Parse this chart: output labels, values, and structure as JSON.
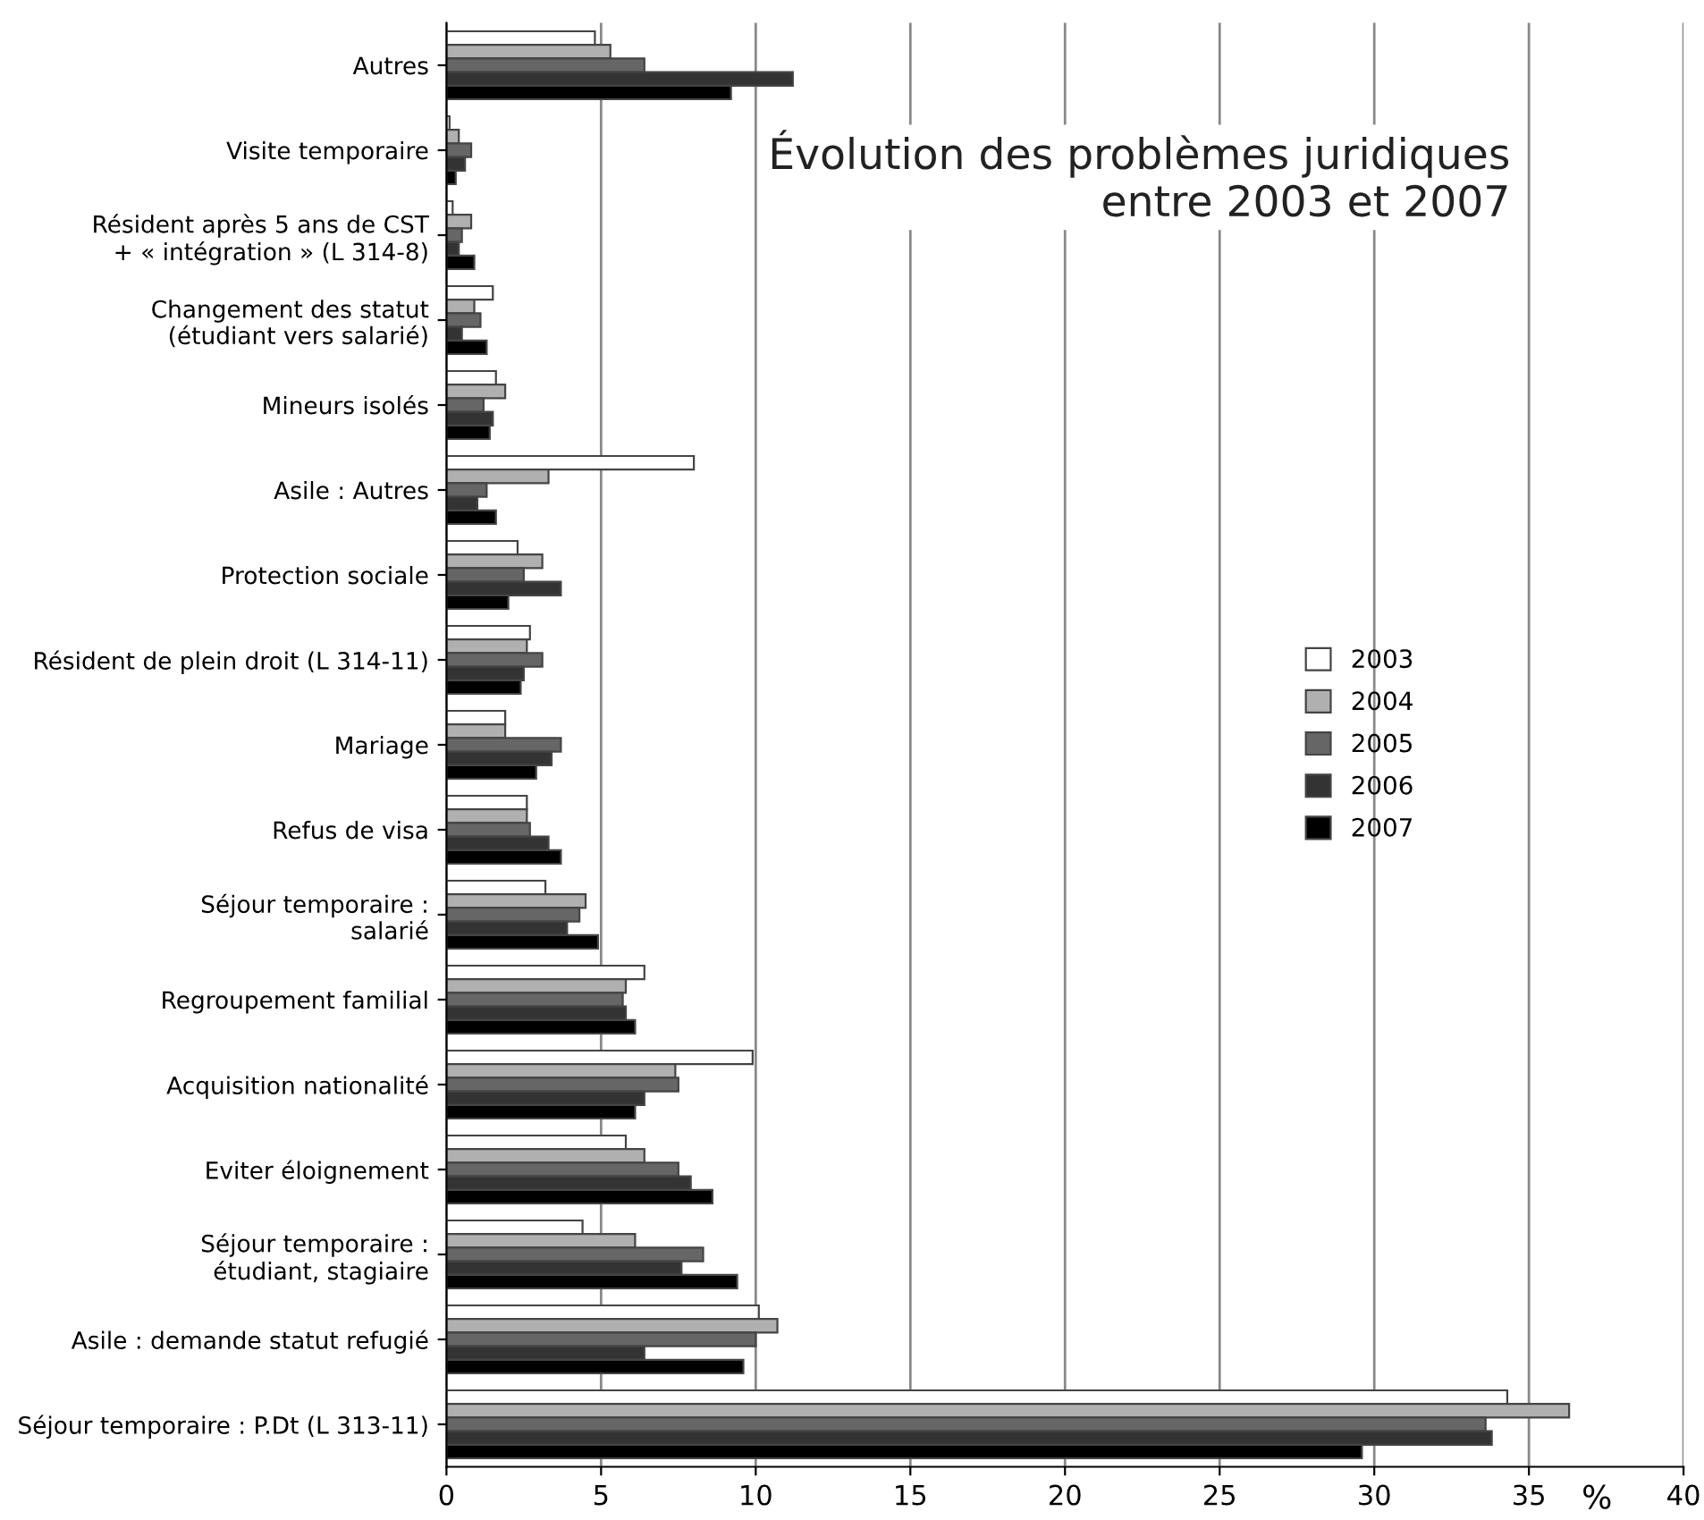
{
  "chart_data": {
    "type": "bar",
    "orientation": "horizontal",
    "title": "Évolution des problèmes juridiques\nentre 2003 et 2007",
    "xlabel": "%",
    "categories": [
      "Autres",
      "Visite temporaire",
      "Résident après 5 ans de CST\n+ « intégration » (L 314-8)",
      "Changement des statut\n(étudiant vers salarié)",
      "Mineurs isolés",
      "Asile : Autres",
      "Protection sociale",
      "Résident de plein droit (L 314-11)",
      "Mariage",
      "Refus de visa",
      "Séjour temporaire :\nsalarié",
      "Regroupement familial",
      "Acquisition nationalité",
      "Eviter éloignement",
      "Séjour temporaire :\nétudiant, stagiaire",
      "Asile : demande statut refugié",
      "Séjour temporaire : P.Dt (L 313-11)"
    ],
    "series": [
      {
        "name": "2003",
        "color": "#ffffff",
        "values": [
          4.8,
          0.1,
          0.2,
          1.5,
          1.6,
          8.0,
          2.3,
          2.7,
          1.9,
          2.6,
          3.2,
          6.4,
          9.9,
          5.8,
          4.4,
          10.1,
          34.3
        ]
      },
      {
        "name": "2004",
        "color": "#b0b0b0",
        "values": [
          5.3,
          0.4,
          0.8,
          0.9,
          1.9,
          3.3,
          3.1,
          2.6,
          1.9,
          2.6,
          4.5,
          5.8,
          7.4,
          6.4,
          6.1,
          10.7,
          36.3
        ]
      },
      {
        "name": "2005",
        "color": "#666666",
        "values": [
          6.4,
          0.8,
          0.5,
          1.1,
          1.2,
          1.3,
          2.5,
          3.1,
          3.7,
          2.7,
          4.3,
          5.7,
          7.5,
          7.5,
          8.3,
          10.0,
          33.6
        ]
      },
      {
        "name": "2006",
        "color": "#333333",
        "values": [
          11.2,
          0.6,
          0.4,
          0.5,
          1.5,
          1.0,
          3.7,
          2.5,
          3.4,
          3.3,
          3.9,
          5.8,
          6.4,
          7.9,
          7.6,
          6.4,
          33.8
        ]
      },
      {
        "name": "2007",
        "color": "#000000",
        "values": [
          9.2,
          0.3,
          0.9,
          1.3,
          1.4,
          1.6,
          2.0,
          2.4,
          2.9,
          3.7,
          4.9,
          6.1,
          6.1,
          8.6,
          9.4,
          9.6,
          29.6
        ]
      }
    ],
    "xlim": [
      0,
      40
    ],
    "xticks": [
      0,
      5,
      10,
      15,
      20,
      25,
      30,
      35,
      40
    ],
    "grid": "x",
    "legend": "right"
  }
}
